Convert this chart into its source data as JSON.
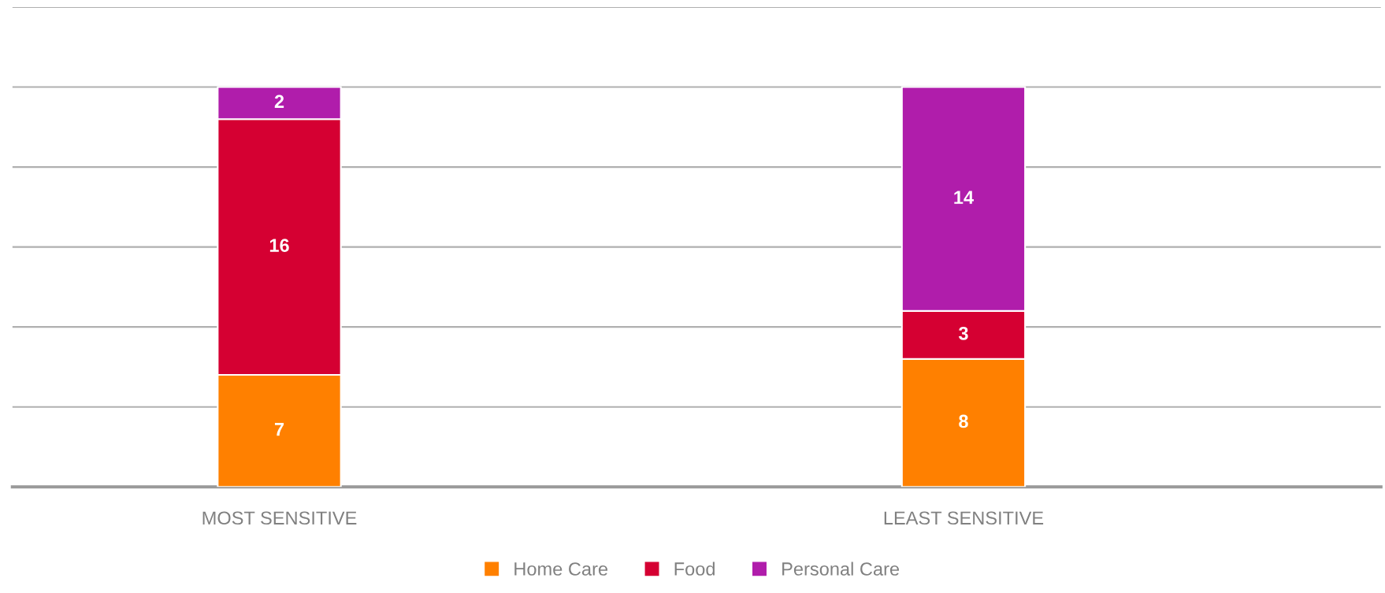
{
  "chart_data": {
    "type": "bar",
    "stacked": true,
    "categories": [
      "MOST SENSITIVE",
      "LEAST SENSITIVE"
    ],
    "series": [
      {
        "name": "Home Care",
        "color": "#ff8000",
        "values": [
          7,
          8
        ]
      },
      {
        "name": "Food",
        "color": "#d50032",
        "values": [
          16,
          3
        ]
      },
      {
        "name": "Personal Care",
        "color": "#b01dab",
        "values": [
          2,
          14
        ]
      }
    ],
    "ylim": [
      0,
      30
    ],
    "yticks": [
      {
        "value": 5,
        "label": null
      },
      {
        "value": 10,
        "label": null
      },
      {
        "value": 15,
        "label": null
      },
      {
        "value": 20,
        "label": null
      },
      {
        "value": 25,
        "label": null
      },
      {
        "value": 30,
        "label": null
      }
    ],
    "tick_labels": "x",
    "grid": "y",
    "legend": "bottom",
    "data_labels": true
  }
}
